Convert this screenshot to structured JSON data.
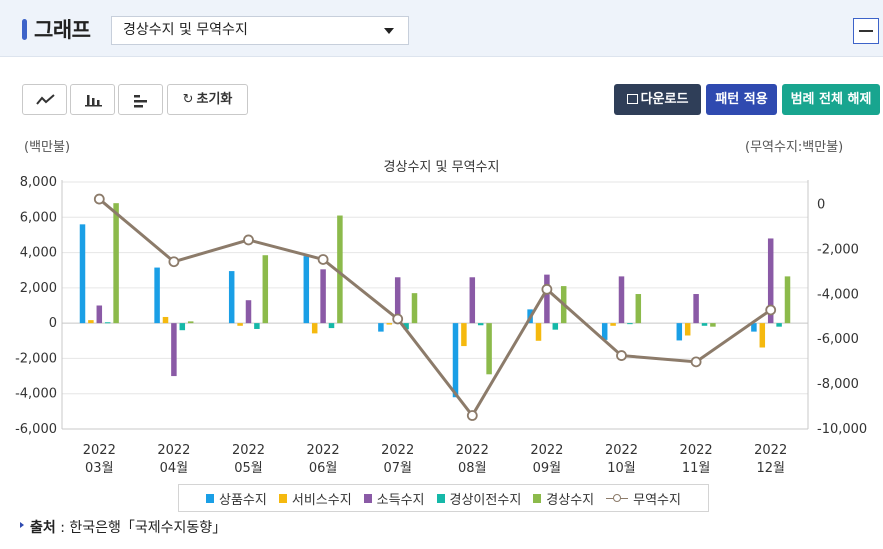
{
  "header": {
    "title": "그래프",
    "select_value": "경상수지 및 무역수지"
  },
  "toolbar": {
    "reset_label": "초기화",
    "download_label": "다운로드",
    "pattern_label": "패턴 적용",
    "legend_toggle_label": "범례 전체 해제"
  },
  "source": {
    "label": "출처",
    "text": "한국은행「국제수지동향」"
  },
  "colors": {
    "goods": "#1a9fe6",
    "services": "#f5b90f",
    "income": "#8a5aa6",
    "transfer": "#15b8a8",
    "current": "#8cba4b",
    "trade": "#8c7b6a"
  },
  "chart_data": {
    "type": "bar",
    "title": "경상수지 및 무역수지",
    "ylabel_left": "(백만불)",
    "ylabel_right": "(무역수지:백만불)",
    "categories": [
      [
        "2022",
        "03월"
      ],
      [
        "2022",
        "04월"
      ],
      [
        "2022",
        "05월"
      ],
      [
        "2022",
        "06월"
      ],
      [
        "2022",
        "07월"
      ],
      [
        "2022",
        "08월"
      ],
      [
        "2022",
        "09월"
      ],
      [
        "2022",
        "10월"
      ],
      [
        "2022",
        "11월"
      ],
      [
        "2022",
        "12월"
      ]
    ],
    "ylim_left": [
      -6000,
      8000
    ],
    "yticks_left": [
      "8,000",
      "6,000",
      "4,000",
      "2,000",
      "0",
      "-2,000",
      "-4,000",
      "-6,000"
    ],
    "ylim_right": [
      -10000,
      1000
    ],
    "yticks_right": [
      "0",
      "-2,000",
      "-4,000",
      "-6,000",
      "-8,000",
      "-10,000"
    ],
    "series": [
      {
        "name": "상품수지",
        "axis": "left",
        "kind": "bar",
        "color": "#1a9fe6",
        "values": [
          5600,
          3150,
          2950,
          3800,
          -480,
          -4200,
          780,
          -950,
          -980,
          -480
        ]
      },
      {
        "name": "서비스수지",
        "axis": "left",
        "kind": "bar",
        "color": "#f5b90f",
        "values": [
          170,
          350,
          -150,
          -580,
          -80,
          -1300,
          -1000,
          -150,
          -700,
          -1380
        ]
      },
      {
        "name": "소득수지",
        "axis": "left",
        "kind": "bar",
        "color": "#8a5aa6",
        "values": [
          1000,
          -3000,
          1300,
          3050,
          2600,
          2600,
          2750,
          2650,
          1650,
          4800
        ]
      },
      {
        "name": "경상이전수지",
        "axis": "left",
        "kind": "bar",
        "color": "#15b8a8",
        "values": [
          50,
          -400,
          -330,
          -280,
          -350,
          -120,
          -370,
          -50,
          -150,
          -200
        ]
      },
      {
        "name": "경상수지",
        "axis": "left",
        "kind": "bar",
        "color": "#8cba4b",
        "values": [
          6800,
          100,
          3850,
          6100,
          1700,
          -2900,
          2100,
          1650,
          -200,
          2650
        ]
      },
      {
        "name": "무역수지",
        "axis": "right",
        "kind": "line",
        "color": "#8c7b6a",
        "values": [
          240,
          -2550,
          -1580,
          -2450,
          -5100,
          -9400,
          -3780,
          -6730,
          -7010,
          -4700
        ]
      }
    ],
    "grid": true,
    "legend_position": "bottom"
  }
}
